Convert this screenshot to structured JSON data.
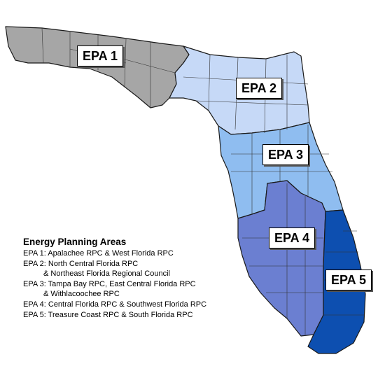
{
  "map": {
    "regions": [
      {
        "id": "epa1",
        "label": "EPA 1",
        "color": "#a6a6a6"
      },
      {
        "id": "epa2",
        "label": "EPA 2",
        "color": "#c6d9f7"
      },
      {
        "id": "epa3",
        "label": "EPA 3",
        "color": "#8fbdf0"
      },
      {
        "id": "epa4",
        "label": "EPA 4",
        "color": "#6b7fd1"
      },
      {
        "id": "epa5",
        "label": "EPA 5",
        "color": "#0d4fb0"
      }
    ]
  },
  "legend": {
    "title": "Energy Planning Areas",
    "items": [
      {
        "line1": "EPA 1: Apalachee RPC & West Florida RPC",
        "line2": ""
      },
      {
        "line1": "EPA 2: North Central Florida RPC",
        "line2": "& Northeast Florida Regional Council"
      },
      {
        "line1": "EPA 3: Tampa Bay RPC, East Central Florida RPC",
        "line2": "& Withlacoochee RPC"
      },
      {
        "line1": "EPA 4: Central Florida RPC & Southwest Florida RPC",
        "line2": ""
      },
      {
        "line1": "EPA 5: Treasure Coast RPC & South Florida RPC",
        "line2": ""
      }
    ]
  }
}
